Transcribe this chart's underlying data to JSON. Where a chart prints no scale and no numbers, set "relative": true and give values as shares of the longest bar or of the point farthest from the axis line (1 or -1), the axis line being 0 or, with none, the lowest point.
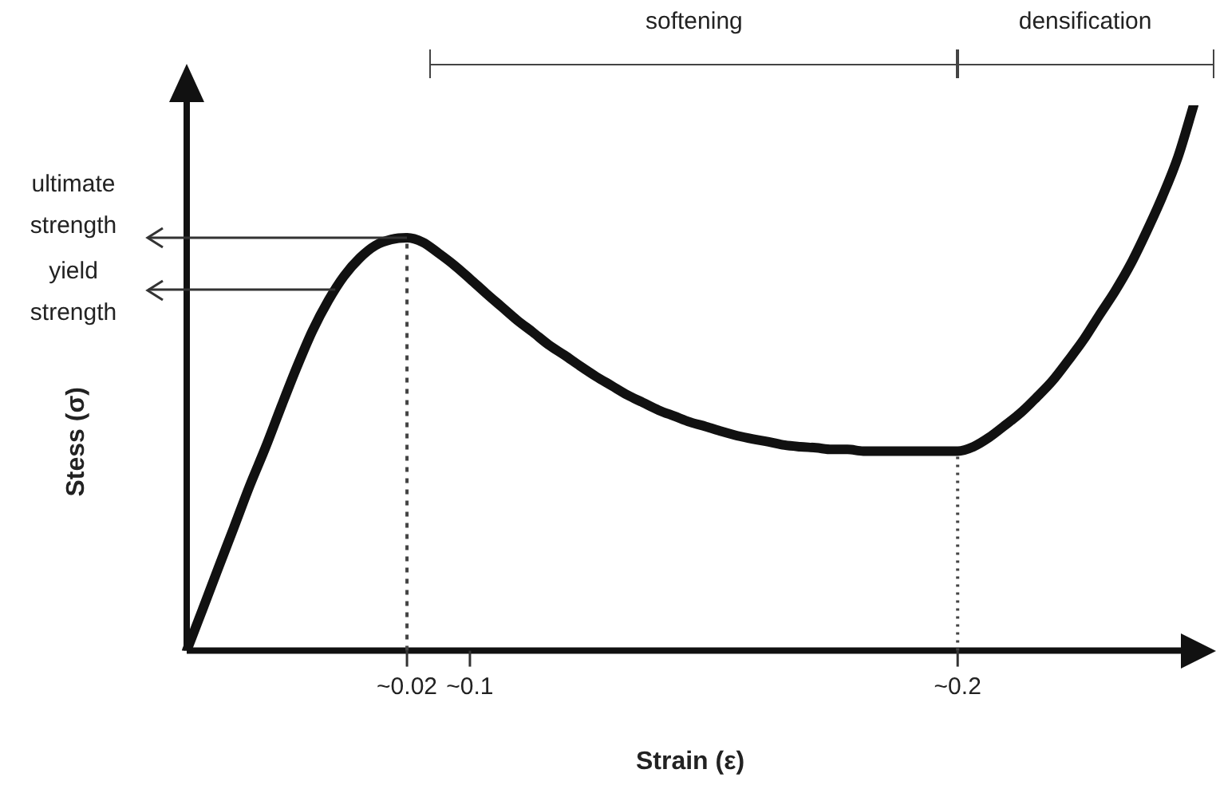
{
  "chart_data": {
    "type": "line",
    "relative": true,
    "xlabel": "Strain (ε)",
    "ylabel": "Stess (σ)",
    "categories": [
      null,
      null,
      null,
      null,
      null,
      null,
      null,
      null,
      null,
      null,
      null,
      null,
      null,
      null,
      "~0.02",
      null,
      null,
      null,
      "~0.1",
      null,
      null,
      null,
      null,
      null,
      null,
      null,
      null,
      null,
      null,
      null,
      null,
      null,
      null,
      null,
      null,
      null,
      null,
      null,
      null,
      null,
      null,
      null,
      null,
      null,
      null,
      null,
      null,
      null,
      null,
      "~0.2",
      null,
      null,
      null,
      null,
      null,
      null,
      null,
      null,
      null,
      null,
      null,
      null,
      null,
      null,
      null
    ],
    "series": [
      {
        "color": "#111111",
        "values": [
          0,
          0.075,
          0.151,
          0.226,
          0.302,
          0.372,
          0.447,
          0.52,
          0.587,
          0.642,
          0.687,
          0.72,
          0.743,
          0.754,
          0.757,
          0.749,
          0.729,
          0.707,
          0.682,
          0.656,
          0.631,
          0.606,
          0.584,
          0.561,
          0.542,
          0.522,
          0.503,
          0.486,
          0.469,
          0.455,
          0.441,
          0.43,
          0.419,
          0.411,
          0.402,
          0.394,
          0.388,
          0.383,
          0.377,
          0.374,
          0.372,
          0.369,
          0.369,
          0.366,
          0.366,
          0.366,
          0.366,
          0.366,
          0.366,
          0.366,
          0.374,
          0.391,
          0.413,
          0.436,
          0.464,
          0.494,
          0.531,
          0.57,
          0.615,
          0.659,
          0.709,
          0.768,
          0.832,
          0.905,
          1
        ]
      }
    ],
    "ref_lines": [
      {
        "axis": "x",
        "value": "~0.02",
        "line_style": "dashed"
      },
      {
        "axis": "x",
        "value": "~0.2",
        "line_style": "dotted"
      },
      {
        "axis": "y",
        "value": 0.757,
        "label": "ultimate strength"
      },
      {
        "axis": "y",
        "value": 0.662,
        "label": "yield strength"
      }
    ],
    "annotations": [
      "softening",
      "densification"
    ],
    "legend": false,
    "grid": false,
    "marker": "none",
    "line_style": "solid"
  }
}
